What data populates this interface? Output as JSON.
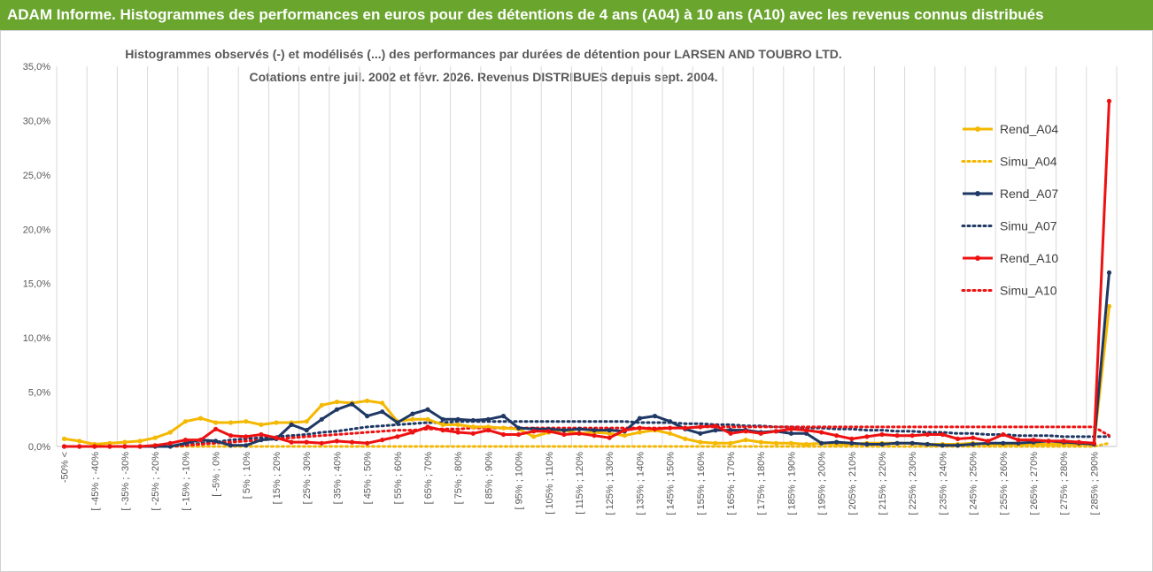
{
  "header": {
    "title": "ADAM Informe. Histogrammes des performances en euros pour des détentions de 4 ans (A04) à 10 ans (A10) avec les revenus connus distribués"
  },
  "chart_data": {
    "type": "line",
    "title_line1": "Histogrammes observés (-) et modélisés (...) des performances par durées de détention pour LARSEN AND TOUBRO LTD.",
    "title_line2": "Cotations entre juil. 2002 et févr. 2026. Revenus DISTRIBUES depuis sept. 2004.",
    "y_ticks": [
      "0,0%",
      "5,0%",
      "10,0%",
      "15,0%",
      "20,0%",
      "25,0%",
      "30,0%",
      "35,0%"
    ],
    "ylim": [
      0,
      35
    ],
    "grid": "vertical",
    "legend_position": "right",
    "x_labels": [
      "-50% <",
      "[ -45% ; -40%",
      "[ -35% ; -30%",
      "[ -25% ; -20%",
      "[ -15% ; -10%",
      "[ -5% ; 0%",
      "[ 5% ; 10%",
      "[ 15% ; 20%",
      "[ 25% ; 30%",
      "[ 35% ; 40%",
      "[ 45% ; 50%",
      "[ 55% ; 60%",
      "[ 65% ; 70%",
      "[ 75% ; 80%",
      "[ 85% ; 90%",
      "[ 95% ; 100%",
      "[ 105% ; 110%",
      "[ 115% ; 120%",
      "[ 125% ; 130%",
      "[ 135% ; 140%",
      "[ 145% ; 150%",
      "[ 155% ; 160%",
      "[ 165% ; 170%",
      "[ 175% ; 180%",
      "[ 185% ; 190%",
      "[ 195% ; 200%",
      "[ 205% ; 210%",
      "[ 215% ; 220%",
      "[ 225% ; 230%",
      "[ 235% ; 240%",
      "[ 245% ; 250%",
      "[ 255% ; 260%",
      "[ 265% ; 270%",
      "[ 275% ; 280%",
      "[ 285% ; 290%"
    ],
    "n_points": 70,
    "series": [
      {
        "name": "Rend_A04",
        "color": "#f5b800",
        "style": "solid",
        "values": [
          0.7,
          0.5,
          0.2,
          0.3,
          0.4,
          0.5,
          0.8,
          1.3,
          2.3,
          2.6,
          2.2,
          2.2,
          2.3,
          2.0,
          2.2,
          2.2,
          2.3,
          3.8,
          4.1,
          4.0,
          4.2,
          4.0,
          2.3,
          2.5,
          2.5,
          2.0,
          2.0,
          1.8,
          1.8,
          1.7,
          1.6,
          0.9,
          1.3,
          1.5,
          1.2,
          1.3,
          1.2,
          1.0,
          1.3,
          1.5,
          1.2,
          0.7,
          0.4,
          0.3,
          0.3,
          0.6,
          0.4,
          0.3,
          0.3,
          0.2,
          0.3,
          0.2,
          0.2,
          0.3,
          0.3,
          0.3,
          0.3,
          0.2,
          0.2,
          0.2,
          0.3,
          0.2,
          0.2,
          0.2,
          0.2,
          0.2,
          0.2,
          0.2,
          0.2,
          12.9
        ]
      },
      {
        "name": "Simu_A04",
        "color": "#f5b800",
        "style": "dotted",
        "values": [
          0.0,
          0.0,
          0.0,
          0.0,
          0.0,
          0.0,
          0.0,
          0.0,
          0.0,
          0.0,
          0.0,
          0.0,
          0.0,
          0.0,
          0.0,
          0.0,
          0.0,
          0.0,
          0.0,
          0.0,
          0.0,
          0.0,
          0.0,
          0.0,
          0.0,
          0.0,
          0.0,
          0.0,
          0.0,
          0.0,
          0.0,
          0.0,
          0.0,
          0.0,
          0.0,
          0.0,
          0.0,
          0.0,
          0.0,
          0.0,
          0.0,
          0.0,
          0.0,
          0.0,
          0.0,
          0.0,
          0.0,
          0.0,
          0.0,
          0.0,
          0.0,
          0.0,
          0.0,
          0.0,
          0.0,
          0.0,
          0.0,
          0.0,
          0.0,
          0.0,
          0.0,
          0.0,
          0.0,
          0.0,
          0.0,
          0.0,
          0.0,
          0.0,
          0.0,
          0.3
        ]
      },
      {
        "name": "Rend_A07",
        "color": "#1f3864",
        "style": "solid",
        "values": [
          0.0,
          0.0,
          0.0,
          0.0,
          0.0,
          0.0,
          0.0,
          0.0,
          0.3,
          0.6,
          0.5,
          0.1,
          0.1,
          0.6,
          0.7,
          2.0,
          1.5,
          2.5,
          3.4,
          3.9,
          2.8,
          3.2,
          2.2,
          3.0,
          3.4,
          2.5,
          2.5,
          2.4,
          2.5,
          2.8,
          1.7,
          1.6,
          1.6,
          1.5,
          1.6,
          1.5,
          1.5,
          1.4,
          2.6,
          2.8,
          2.3,
          1.6,
          1.2,
          1.5,
          1.5,
          1.5,
          1.3,
          1.4,
          1.2,
          1.2,
          0.3,
          0.4,
          0.3,
          0.2,
          0.2,
          0.3,
          0.3,
          0.2,
          0.1,
          0.1,
          0.2,
          0.3,
          0.3,
          0.3,
          0.4,
          0.5,
          0.4,
          0.3,
          0.2,
          16.0
        ]
      },
      {
        "name": "Simu_A07",
        "color": "#1f3864",
        "style": "dotted",
        "values": [
          0.0,
          0.0,
          0.0,
          0.0,
          0.0,
          0.0,
          0.0,
          0.0,
          0.1,
          0.3,
          0.4,
          0.6,
          0.7,
          0.8,
          0.9,
          1.0,
          1.1,
          1.3,
          1.4,
          1.6,
          1.8,
          1.9,
          2.0,
          2.1,
          2.2,
          2.2,
          2.3,
          2.3,
          2.3,
          2.3,
          2.3,
          2.3,
          2.3,
          2.3,
          2.3,
          2.3,
          2.3,
          2.3,
          2.2,
          2.2,
          2.2,
          2.1,
          2.1,
          2.0,
          2.0,
          1.9,
          1.9,
          1.8,
          1.8,
          1.7,
          1.7,
          1.6,
          1.6,
          1.5,
          1.5,
          1.4,
          1.4,
          1.3,
          1.3,
          1.2,
          1.2,
          1.1,
          1.1,
          1.0,
          1.0,
          1.0,
          0.9,
          0.9,
          0.9,
          0.9
        ]
      },
      {
        "name": "Rend_A10",
        "color": "#ee1111",
        "style": "solid",
        "values": [
          0.0,
          0.0,
          0.0,
          0.0,
          0.0,
          0.0,
          0.1,
          0.3,
          0.6,
          0.6,
          1.6,
          1.0,
          0.9,
          1.1,
          0.8,
          0.4,
          0.4,
          0.3,
          0.5,
          0.4,
          0.3,
          0.6,
          0.9,
          1.3,
          1.8,
          1.5,
          1.3,
          1.2,
          1.5,
          1.1,
          1.1,
          1.4,
          1.4,
          1.1,
          1.2,
          1.0,
          0.8,
          1.5,
          1.7,
          1.6,
          1.7,
          1.7,
          1.8,
          1.9,
          1.2,
          1.4,
          1.2,
          1.4,
          1.6,
          1.5,
          1.3,
          1.0,
          0.7,
          0.9,
          1.1,
          1.0,
          1.0,
          1.1,
          1.1,
          0.7,
          0.8,
          0.5,
          1.1,
          0.6,
          0.6,
          0.5,
          0.5,
          0.4,
          0.3,
          31.8
        ]
      },
      {
        "name": "Simu_A10",
        "color": "#ee1111",
        "style": "dotted",
        "values": [
          0.0,
          0.0,
          0.0,
          0.0,
          0.0,
          0.0,
          0.0,
          0.0,
          0.1,
          0.2,
          0.3,
          0.4,
          0.5,
          0.6,
          0.7,
          0.8,
          0.9,
          1.0,
          1.1,
          1.2,
          1.3,
          1.4,
          1.5,
          1.5,
          1.6,
          1.6,
          1.6,
          1.7,
          1.7,
          1.7,
          1.7,
          1.7,
          1.7,
          1.7,
          1.7,
          1.7,
          1.7,
          1.7,
          1.7,
          1.7,
          1.7,
          1.7,
          1.8,
          1.8,
          1.8,
          1.8,
          1.8,
          1.8,
          1.8,
          1.8,
          1.8,
          1.8,
          1.8,
          1.8,
          1.8,
          1.8,
          1.8,
          1.8,
          1.8,
          1.8,
          1.8,
          1.8,
          1.8,
          1.8,
          1.8,
          1.8,
          1.8,
          1.8,
          1.8,
          1.0
        ]
      }
    ]
  }
}
